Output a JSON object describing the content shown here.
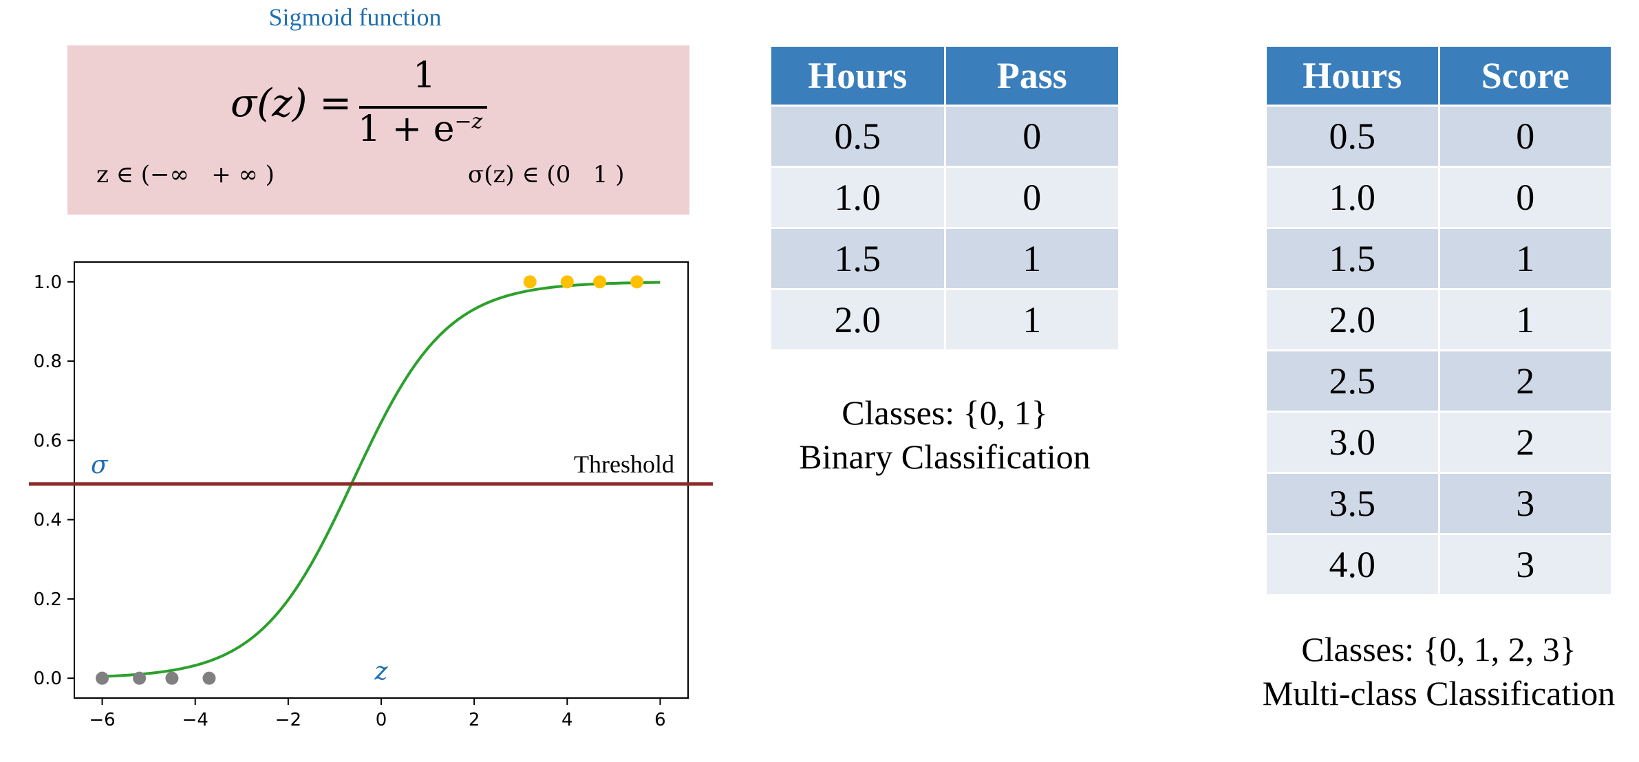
{
  "sigmoid_panel": {
    "title": "Sigmoid function",
    "formula": {
      "lhs": "σ(z) =",
      "numerator": "1",
      "denominator_base": "1 + e",
      "denominator_exponent": "−z"
    },
    "domain": "z ∈ (−∞   + ∞ )",
    "range": "σ(z) ∈ (0   1 )"
  },
  "chart_data": {
    "type": "line",
    "title": "",
    "xlabel": "z",
    "ylabel": "σ",
    "xlim": [
      -6.6,
      6.6
    ],
    "ylim": [
      -0.05,
      1.05
    ],
    "xticks": [
      -6,
      -4,
      -2,
      0,
      2,
      4,
      6
    ],
    "xtick_labels": [
      "−6",
      "−4",
      "−2",
      "0",
      "2",
      "4",
      "6"
    ],
    "yticks": [
      0.0,
      0.2,
      0.4,
      0.6,
      0.8,
      1.0
    ],
    "ytick_labels": [
      "0.0",
      "0.2",
      "0.4",
      "0.6",
      "0.8",
      "1.0"
    ],
    "grid": false,
    "curve": {
      "function": "sigmoid",
      "shift": -0.6,
      "x_range": [
        -6,
        6
      ],
      "color": "#2ca02c"
    },
    "threshold": {
      "label": "Threshold",
      "y": 0.49,
      "color": "#8b2a2a"
    },
    "points": [
      {
        "x": -6.0,
        "y": 0,
        "color": "#808080"
      },
      {
        "x": -5.2,
        "y": 0,
        "color": "#808080"
      },
      {
        "x": -4.5,
        "y": 0,
        "color": "#808080"
      },
      {
        "x": -3.7,
        "y": 0,
        "color": "#808080"
      },
      {
        "x": 3.2,
        "y": 1,
        "color": "#ffc000"
      },
      {
        "x": 4.0,
        "y": 1,
        "color": "#ffc000"
      },
      {
        "x": 4.7,
        "y": 1,
        "color": "#ffc000"
      },
      {
        "x": 5.5,
        "y": 1,
        "color": "#ffc000"
      }
    ]
  },
  "binary_table": {
    "headers": [
      "Hours",
      "Pass"
    ],
    "rows": [
      [
        "0.5",
        "0"
      ],
      [
        "1.0",
        "0"
      ],
      [
        "1.5",
        "1"
      ],
      [
        "2.0",
        "1"
      ]
    ],
    "caption_line1": "Classes: {0, 1}",
    "caption_line2": "Binary Classification"
  },
  "multi_table": {
    "headers": [
      "Hours",
      "Score"
    ],
    "rows": [
      [
        "0.5",
        "0"
      ],
      [
        "1.0",
        "0"
      ],
      [
        "1.5",
        "1"
      ],
      [
        "2.0",
        "1"
      ],
      [
        "2.5",
        "2"
      ],
      [
        "3.0",
        "2"
      ],
      [
        "3.5",
        "3"
      ],
      [
        "4.0",
        "3"
      ]
    ],
    "caption_line1": "Classes: {0, 1, 2, 3}",
    "caption_line2": "Multi-class Classification"
  },
  "colors": {
    "header_blue": "#3a7fbc",
    "row_dark": "#cfd8e6",
    "row_light": "#e8edf3",
    "formula_bg": "#eed0d3",
    "title_blue": "#1f6fb2"
  }
}
